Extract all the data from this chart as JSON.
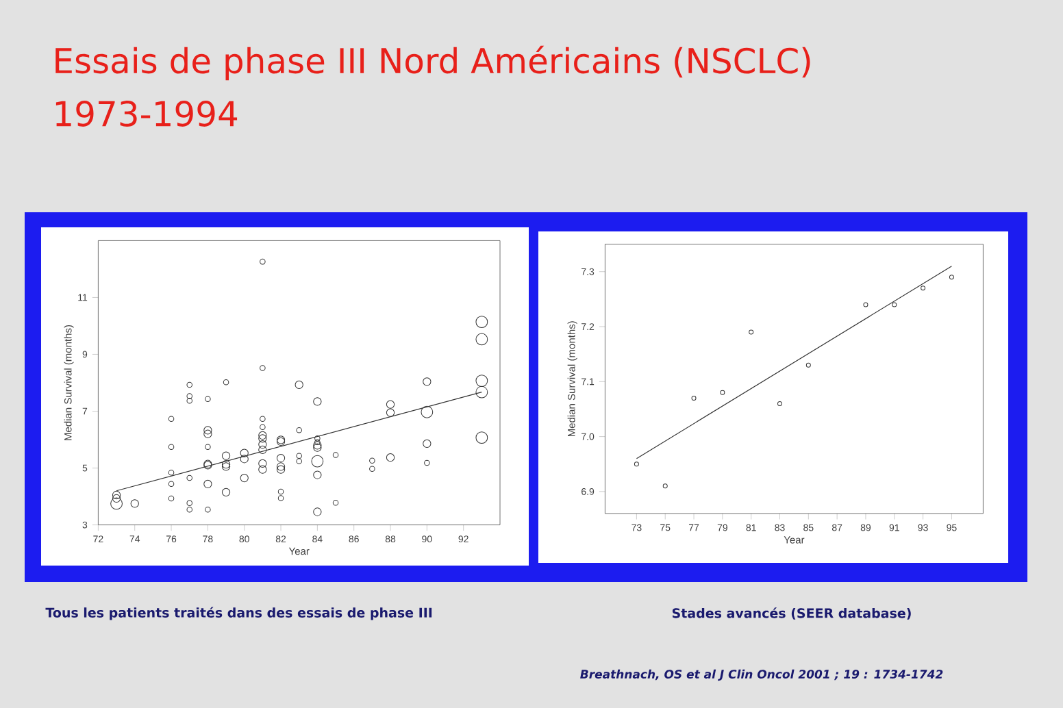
{
  "chart_data": [
    {
      "type": "bubble",
      "title": "Essais de phase III Nord Américains (NSCLC)",
      "subtitle": "1973-1994",
      "xlabel": "Year",
      "ylabel": "Median Survival (months)",
      "xlim": [
        72,
        94
      ],
      "ylim": [
        3,
        13
      ],
      "xticks": [
        72,
        74,
        76,
        78,
        80,
        82,
        84,
        86,
        88,
        90,
        92
      ],
      "yticks": [
        3,
        5,
        7,
        9,
        11
      ],
      "annotations": [
        "Tous les patients traités dans des essais de phase III"
      ],
      "series": [
        {
          "marker": "circle",
          "color": "#333333",
          "x": [
            73,
            73,
            73,
            74,
            76,
            76,
            76,
            76,
            76,
            77,
            77,
            77,
            77,
            77,
            77,
            78,
            78,
            78,
            78,
            78,
            78,
            78,
            78,
            79,
            79,
            79,
            79,
            79,
            80,
            80,
            80,
            81,
            81,
            81,
            81,
            81,
            81,
            81,
            81,
            81,
            81,
            82,
            82,
            82,
            82,
            82,
            82,
            82,
            83,
            83,
            83,
            83,
            84,
            84,
            84,
            84,
            84,
            84,
            84,
            84,
            85,
            85,
            87,
            87,
            88,
            88,
            88,
            90,
            90,
            90,
            90,
            93,
            93,
            93,
            93,
            93
          ],
          "values": [
            3.75,
            3.93,
            4.05,
            3.75,
            6.73,
            5.74,
            4.84,
            4.44,
            3.93,
            7.93,
            7.53,
            7.37,
            4.65,
            3.77,
            3.54,
            7.43,
            6.33,
            6.2,
            5.74,
            5.14,
            5.1,
            4.44,
            3.54,
            8.02,
            5.43,
            5.13,
            5.05,
            4.15,
            5.53,
            5.32,
            4.65,
            12.26,
            8.52,
            6.73,
            6.44,
            6.15,
            6.04,
            5.83,
            5.64,
            5.16,
            4.95,
            5.99,
            5.93,
            5.35,
            5.05,
            4.95,
            4.17,
            3.94,
            7.93,
            6.33,
            5.43,
            5.24,
            7.34,
            6.04,
            5.91,
            5.8,
            5.72,
            5.24,
            4.76,
            3.46,
            5.46,
            3.78,
            5.26,
            4.97,
            7.24,
            6.95,
            5.37,
            8.04,
            6.97,
            5.86,
            5.18,
            10.14,
            9.53,
            8.07,
            7.67,
            6.07
          ],
          "sizes": [
            1,
            0.45,
            0.45,
            0.45,
            0.2,
            0.2,
            0.2,
            0.2,
            0.2,
            0.2,
            0.2,
            0.2,
            0.2,
            0.2,
            0.2,
            0.2,
            0.45,
            0.45,
            0.2,
            0.45,
            0.45,
            0.45,
            0.2,
            0.2,
            0.45,
            0.45,
            0.45,
            0.45,
            0.45,
            0.45,
            0.45,
            0.2,
            0.2,
            0.2,
            0.2,
            0.45,
            0.45,
            0.45,
            0.45,
            0.45,
            0.45,
            0.45,
            0.45,
            0.45,
            0.45,
            0.45,
            0.2,
            0.2,
            0.45,
            0.2,
            0.2,
            0.2,
            0.45,
            0.2,
            0.2,
            0.45,
            0.45,
            1,
            0.45,
            0.45,
            0.2,
            0.2,
            0.2,
            0.2,
            0.45,
            0.45,
            0.45,
            0.45,
            1,
            0.45,
            0.2,
            1,
            1,
            1,
            1,
            1
          ]
        },
        {
          "type": "line",
          "marker": "none",
          "color": "#333333",
          "x": [
            73,
            93
          ],
          "values": [
            4.2,
            7.67
          ]
        }
      ]
    },
    {
      "type": "scatter",
      "xlabel": "Year",
      "ylabel": "Median Survival (months)",
      "xlim": [
        70.8,
        97.2
      ],
      "ylim": [
        6.86,
        7.35
      ],
      "xticks": [
        73,
        75,
        77,
        79,
        81,
        83,
        85,
        87,
        89,
        91,
        93,
        95
      ],
      "yticks": [
        6.9,
        {
          "value": 7.0,
          "label": "7.0"
        },
        7.1,
        7.2,
        7.3
      ],
      "annotations": [
        "Stades avancés (SEER database)",
        "Breathnach, OS et al J Clin Oncol 2001 ; 19 : 1734-1742"
      ],
      "series": [
        {
          "marker": "circle",
          "color": "#333333",
          "x": [
            73,
            75,
            77,
            79,
            81,
            83,
            85,
            89,
            91,
            93,
            95
          ],
          "values": [
            6.95,
            6.91,
            7.07,
            7.08,
            7.19,
            7.06,
            7.13,
            7.24,
            7.24,
            7.27,
            7.29
          ]
        },
        {
          "type": "line",
          "marker": "none",
          "color": "#333333",
          "x": [
            73,
            95
          ],
          "values": [
            6.96,
            7.31
          ]
        }
      ]
    }
  ]
}
